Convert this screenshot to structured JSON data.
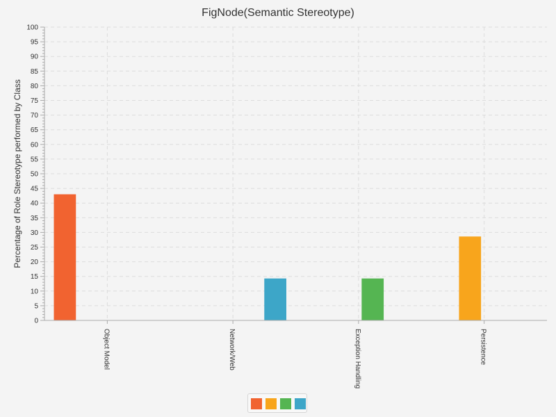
{
  "chart_data": {
    "type": "bar",
    "title": "FigNode(Semantic Stereotype)",
    "xlabel": "",
    "ylabel": "Percentage of Role Stereotype performed by Class",
    "ylim": [
      0,
      100
    ],
    "y_tick_step": 5,
    "grid": true,
    "legend_position": "bottom-center",
    "categories": [
      "Object Model",
      "Network/Web",
      "Exception Handling",
      "Persistence"
    ],
    "series": [
      {
        "color": "#f16330",
        "values": [
          43,
          0,
          0,
          0
        ]
      },
      {
        "color": "#f8a51c",
        "values": [
          0,
          0,
          0,
          28.6
        ]
      },
      {
        "color": "#55b552",
        "values": [
          0,
          0,
          14.3,
          0
        ]
      },
      {
        "color": "#3da6c8",
        "values": [
          0,
          14.3,
          0,
          0
        ]
      }
    ]
  }
}
